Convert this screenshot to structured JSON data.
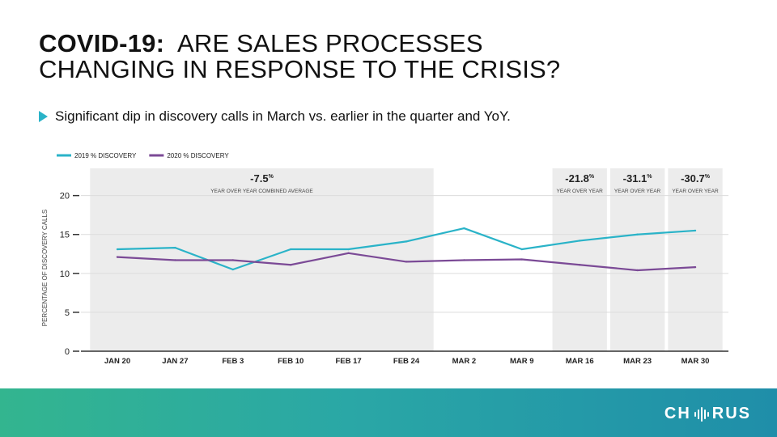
{
  "header": {
    "title_bold": "COVID-19:",
    "title_rest_line1": "ARE SALES PROCESSES",
    "title_line2": "CHANGING IN RESPONSE TO THE CRISIS?"
  },
  "bullet": {
    "text": "Significant dip in discovery calls in March vs. earlier in the quarter and YoY."
  },
  "chart_data": {
    "type": "line",
    "categories": [
      "JAN 20",
      "JAN 27",
      "FEB 3",
      "FEB 10",
      "FEB 17",
      "FEB 24",
      "MAR 2",
      "MAR 9",
      "MAR 16",
      "MAR 23",
      "MAR 30"
    ],
    "series": [
      {
        "name": "2019 % DISCOVERY",
        "color": "#2ab3c8",
        "values": [
          13.1,
          13.3,
          10.5,
          13.1,
          13.1,
          14.1,
          15.8,
          13.1,
          14.2,
          15.0,
          15.5
        ]
      },
      {
        "name": "2020 % DISCOVERY",
        "color": "#7b4a96",
        "values": [
          12.1,
          11.7,
          11.7,
          11.1,
          12.6,
          11.5,
          11.7,
          11.8,
          11.1,
          10.4,
          10.8
        ]
      }
    ],
    "ylabel": "PERCENTAGE OF DISCOVERY CALLS",
    "ylim": [
      0,
      23.5
    ],
    "yticks": [
      0,
      5,
      10,
      15,
      20
    ],
    "legend_position": "top-left",
    "grid": true,
    "shaded_regions": [
      {
        "from_index": 0,
        "to_index": 5,
        "value": "-7.5",
        "unit": "%",
        "caption": "YEAR OVER YEAR COMBINED AVERAGE"
      },
      {
        "from_index": 8,
        "to_index": 8,
        "value": "-21.8",
        "unit": "%",
        "caption": "YEAR OVER YEAR"
      },
      {
        "from_index": 9,
        "to_index": 9,
        "value": "-31.1",
        "unit": "%",
        "caption": "YEAR OVER YEAR"
      },
      {
        "from_index": 10,
        "to_index": 10,
        "value": "-30.7",
        "unit": "%",
        "caption": "YEAR OVER YEAR"
      }
    ]
  },
  "footer": {
    "logo_left": "CH",
    "logo_right": "RUS"
  }
}
